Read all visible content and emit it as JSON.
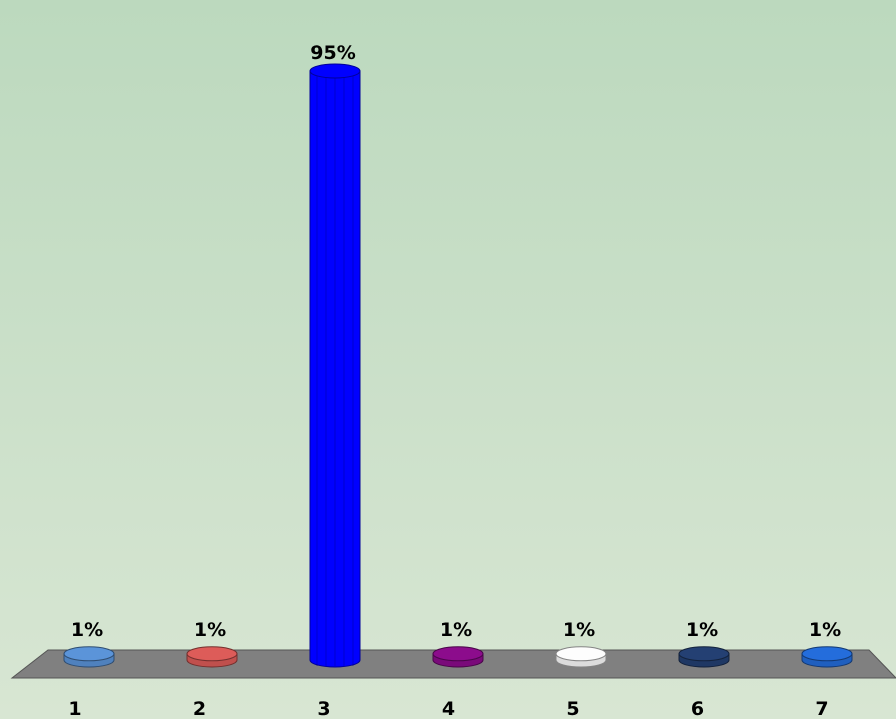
{
  "chart_data": {
    "type": "bar",
    "style": "3d-cylinder",
    "categories": [
      "1",
      "2",
      "3",
      "4",
      "5",
      "6",
      "7"
    ],
    "values": [
      1,
      1,
      95,
      1,
      1,
      1,
      1
    ],
    "value_labels": [
      "1%",
      "1%",
      "95%",
      "1%",
      "1%",
      "1%",
      "1%"
    ],
    "colors": [
      "#4f81bd",
      "#c0504d",
      "#0000ff",
      "#7a0a7a",
      "#dcdcdc",
      "#1f3864",
      "#1f5fbf"
    ],
    "ylim": [
      0,
      100
    ],
    "title": "",
    "xlabel": "",
    "ylabel": "",
    "grid": false,
    "legend": "none",
    "floor_color": "#808080",
    "background": [
      "#bcd9be",
      "#d8e6d3"
    ]
  }
}
